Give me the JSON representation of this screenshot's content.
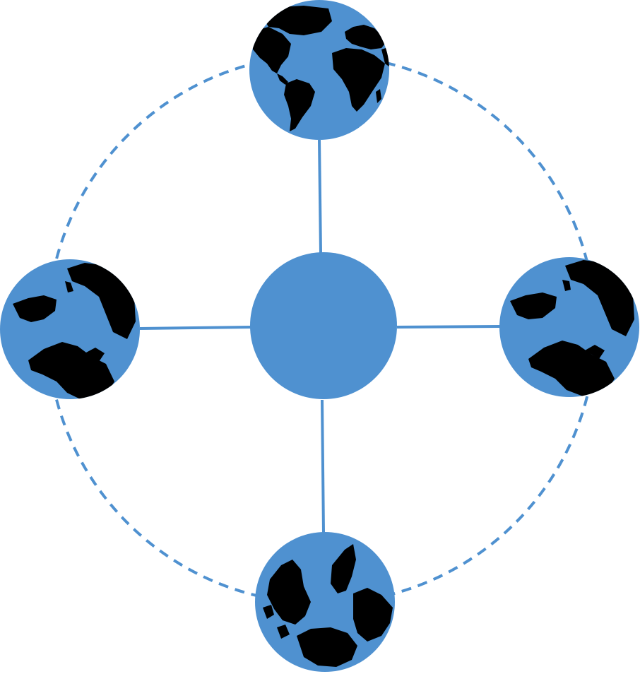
{
  "colors": {
    "background": "#ffffff",
    "node_fill": "#4f91d0",
    "connector": "#4f91d0",
    "landmass": "#000000"
  },
  "diagram": {
    "center": {
      "icon": "hub-circle"
    },
    "orbit": {
      "style": "dashed-circle"
    },
    "nodes": [
      {
        "id": "top",
        "icon": "globe-americas-africa-icon"
      },
      {
        "id": "left",
        "icon": "globe-polar-view-icon"
      },
      {
        "id": "right",
        "icon": "globe-polar-view-icon"
      },
      {
        "id": "bottom",
        "icon": "globe-inverted-view-icon"
      }
    ]
  }
}
